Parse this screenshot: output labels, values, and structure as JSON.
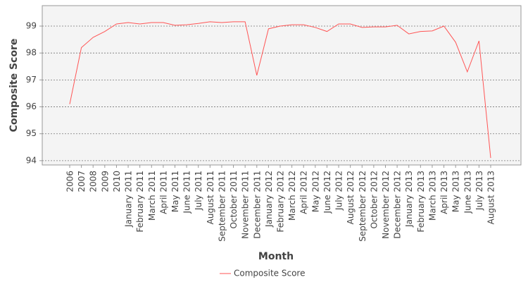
{
  "chart_data": {
    "type": "line",
    "x_label": "Month",
    "y_label": "Composite Score",
    "categories": [
      "2006",
      "2007",
      "2008",
      "2009",
      "2010",
      "January 2011",
      "February 2011",
      "March 2011",
      "April 2011",
      "May 2011",
      "June 2011",
      "July 2011",
      "August 2011",
      "September 2011",
      "October 2011",
      "November 2011",
      "December 2011",
      "January 2012",
      "February 2012",
      "March 2012",
      "April 2012",
      "May 2012",
      "June 2012",
      "July 2012",
      "August 2012",
      "September 2012",
      "October 2012",
      "November 2012",
      "December 2012",
      "January 2013",
      "February 2013",
      "March 2013",
      "April 2013",
      "May 2013",
      "June 2013",
      "July 2013",
      "August 2013"
    ],
    "series": [
      {
        "name": "Composite Score",
        "color": "#ff5555",
        "values": [
          96.1,
          98.2,
          98.58,
          98.8,
          99.08,
          99.13,
          99.08,
          99.13,
          99.13,
          99.03,
          99.05,
          99.1,
          99.16,
          99.13,
          99.16,
          99.16,
          97.17,
          98.9,
          99.0,
          99.05,
          99.05,
          98.95,
          98.8,
          99.08,
          99.08,
          98.95,
          98.97,
          98.97,
          99.03,
          98.71,
          98.8,
          98.82,
          99.0,
          98.4,
          97.3,
          98.45,
          94.1
        ]
      }
    ],
    "ylim": [
      93.84,
      99.76
    ],
    "yticks": [
      94,
      95,
      96,
      97,
      98,
      99
    ],
    "grid": true,
    "legend": "bottom"
  }
}
